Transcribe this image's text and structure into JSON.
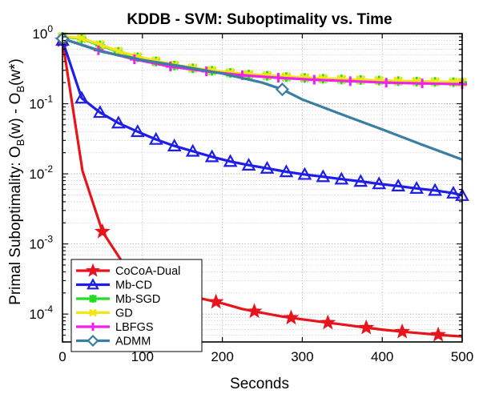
{
  "chart_data": {
    "type": "line",
    "title": "KDDB - SVM: Suboptimality vs. Time",
    "xlabel": "Seconds",
    "ylabel": {
      "main": "Primal Suboptimality: O",
      "sub1": "B",
      "mid": "(w) - O",
      "sub2": "B",
      "tail": "(w*)"
    },
    "xlim": [
      0,
      500
    ],
    "ylim": [
      4e-05,
      1
    ],
    "yscale": "log",
    "grid": true,
    "legend_position": "bottom-left",
    "x_ticks": [
      0,
      100,
      200,
      300,
      400,
      500
    ],
    "x_tick_labels": [
      "0",
      "100",
      "200",
      "300",
      "400",
      "500"
    ],
    "y_ticks": [
      {
        "value": 1,
        "base": "10",
        "exp": "0"
      },
      {
        "value": 0.1,
        "base": "10",
        "exp": "-1"
      },
      {
        "value": 0.01,
        "base": "10",
        "exp": "-2"
      },
      {
        "value": 0.001,
        "base": "10",
        "exp": "-3"
      },
      {
        "value": 0.0001,
        "base": "10",
        "exp": "-4"
      }
    ],
    "series": [
      {
        "name": "CoCoA-Dual",
        "color": "#e8141c",
        "marker": "star",
        "x": [
          0,
          25,
          50,
          75,
          100,
          125,
          150,
          175,
          200,
          225,
          250,
          275,
          300,
          325,
          350,
          375,
          400,
          425,
          450,
          475,
          500
        ],
        "y": [
          0.8,
          0.011,
          0.0015,
          0.00055,
          0.00032,
          0.00024,
          0.0002,
          0.000165,
          0.000142,
          0.000118,
          0.000104,
          9.2e-05,
          8.4e-05,
          7.7e-05,
          7.1e-05,
          6.5e-05,
          6e-05,
          5.6e-05,
          5.3e-05,
          5e-05,
          4.8e-05
        ],
        "marker_x": [
          0,
          50,
          145,
          192,
          240,
          286,
          332,
          380,
          425,
          470
        ]
      },
      {
        "name": "Mb-CD",
        "color": "#1e1ee8",
        "marker": "triangle",
        "x": [
          0,
          24,
          47,
          70,
          94,
          117,
          140,
          163,
          187,
          210,
          233,
          256,
          280,
          303,
          326,
          349,
          373,
          396,
          420,
          443,
          466,
          489,
          500
        ],
        "y": [
          0.8,
          0.12,
          0.075,
          0.053,
          0.04,
          0.031,
          0.025,
          0.021,
          0.0175,
          0.015,
          0.0133,
          0.012,
          0.0107,
          0.0098,
          0.0091,
          0.0084,
          0.0078,
          0.0072,
          0.0067,
          0.0062,
          0.0058,
          0.0053,
          0.0049
        ],
        "marker_x": [
          0,
          24,
          47,
          70,
          94,
          117,
          140,
          163,
          187,
          210,
          233,
          256,
          280,
          303,
          326,
          349,
          373,
          396,
          420,
          443,
          466,
          489,
          500
        ]
      },
      {
        "name": "Mb-SGD",
        "color": "#22dd22",
        "marker": "asterisk",
        "x": [
          0,
          24,
          47,
          70,
          94,
          117,
          140,
          163,
          187,
          210,
          233,
          256,
          280,
          303,
          326,
          349,
          373,
          396,
          420,
          443,
          466,
          489,
          500
        ],
        "y": [
          0.9,
          0.85,
          0.68,
          0.55,
          0.46,
          0.4,
          0.35,
          0.32,
          0.295,
          0.275,
          0.26,
          0.25,
          0.24,
          0.233,
          0.227,
          0.222,
          0.218,
          0.214,
          0.21,
          0.207,
          0.205,
          0.203,
          0.202
        ],
        "marker_x": [
          0,
          24,
          47,
          70,
          94,
          117,
          140,
          163,
          187,
          210,
          233,
          256,
          280,
          303,
          326,
          349,
          373,
          396,
          420,
          443,
          466,
          489,
          500
        ]
      },
      {
        "name": "GD",
        "color": "#f2e614",
        "marker": "x",
        "x": [
          0,
          24,
          47,
          70,
          94,
          117,
          140,
          163,
          187,
          210,
          233,
          256,
          280,
          303,
          326,
          349,
          373,
          396,
          420,
          443,
          466,
          489,
          500
        ],
        "y": [
          0.92,
          0.86,
          0.7,
          0.56,
          0.47,
          0.41,
          0.36,
          0.325,
          0.3,
          0.28,
          0.265,
          0.254,
          0.245,
          0.237,
          0.23,
          0.225,
          0.22,
          0.216,
          0.212,
          0.209,
          0.207,
          0.205,
          0.204
        ],
        "marker_x": [
          0,
          24,
          47,
          70,
          94,
          117,
          140,
          163,
          187,
          210,
          233,
          256,
          280,
          303,
          326,
          349,
          373,
          396,
          420,
          443,
          466,
          489,
          500
        ]
      },
      {
        "name": "LBFGS",
        "color": "#ee22ee",
        "marker": "plus",
        "x": [
          0,
          45,
          90,
          135,
          180,
          225,
          270,
          315,
          360,
          405,
          450,
          500
        ],
        "y": [
          0.85,
          0.58,
          0.43,
          0.34,
          0.29,
          0.255,
          0.235,
          0.22,
          0.21,
          0.2,
          0.195,
          0.19
        ],
        "marker_x": [
          0,
          45,
          90,
          135,
          180,
          225,
          270,
          315,
          360,
          405,
          450,
          500
        ]
      },
      {
        "name": "ADMM",
        "color": "#3a7fa0",
        "marker": "diamond",
        "x": [
          0,
          50,
          100,
          150,
          200,
          250,
          275,
          300,
          350,
          400,
          450,
          500
        ],
        "y": [
          0.85,
          0.55,
          0.42,
          0.34,
          0.27,
          0.2,
          0.16,
          0.115,
          0.07,
          0.043,
          0.026,
          0.016
        ],
        "marker_x": [
          0,
          275
        ]
      }
    ]
  }
}
